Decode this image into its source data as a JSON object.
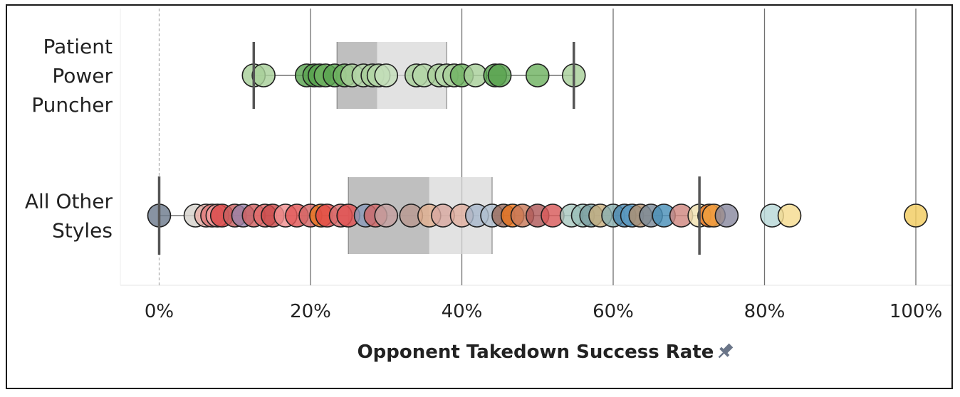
{
  "chart_data": {
    "type": "scatter",
    "subtype": "box-and-whisker strip plot",
    "xlabel": "Opponent Takedown Success Rate",
    "xlabel_icon": "pin-icon",
    "xlim": [
      -0.05,
      1.05
    ],
    "xticks": [
      0,
      0.2,
      0.4,
      0.6,
      0.8,
      1.0
    ],
    "xtick_labels": [
      "0%",
      "20%",
      "40%",
      "60%",
      "80%",
      "100%"
    ],
    "grid": "vertical",
    "zero_line": "dashed",
    "rows": [
      {
        "label_lines": [
          "Patient",
          "Power",
          "Puncher"
        ],
        "box": {
          "whisker_low": 0.125,
          "q1": 0.235,
          "median": 0.288,
          "q3": 0.38,
          "whisker_high": 0.548
        },
        "points": [
          {
            "x": 0.125,
            "color": "#a8cf9a"
          },
          {
            "x": 0.138,
            "color": "#a8cf9a"
          },
          {
            "x": 0.195,
            "color": "#5aa350"
          },
          {
            "x": 0.205,
            "color": "#5aa350"
          },
          {
            "x": 0.212,
            "color": "#5aa350"
          },
          {
            "x": 0.22,
            "color": "#6fb262"
          },
          {
            "x": 0.232,
            "color": "#5aa350"
          },
          {
            "x": 0.245,
            "color": "#6fb262"
          },
          {
            "x": 0.255,
            "color": "#a8cf9a"
          },
          {
            "x": 0.27,
            "color": "#b5d7a8"
          },
          {
            "x": 0.282,
            "color": "#a8cf9a"
          },
          {
            "x": 0.29,
            "color": "#b5d7a8"
          },
          {
            "x": 0.3,
            "color": "#c5dfbb"
          },
          {
            "x": 0.34,
            "color": "#a8cf9a"
          },
          {
            "x": 0.35,
            "color": "#b5d7a8"
          },
          {
            "x": 0.37,
            "color": "#a8cf9a"
          },
          {
            "x": 0.38,
            "color": "#b5d7a8"
          },
          {
            "x": 0.39,
            "color": "#a8cf9a"
          },
          {
            "x": 0.4,
            "color": "#6fb262"
          },
          {
            "x": 0.418,
            "color": "#a8cf9a"
          },
          {
            "x": 0.444,
            "color": "#5aa350"
          },
          {
            "x": 0.45,
            "color": "#5aa350"
          },
          {
            "x": 0.5,
            "color": "#6fb262"
          },
          {
            "x": 0.548,
            "color": "#a8cf9a"
          }
        ]
      },
      {
        "label_lines": [
          "All Other",
          "Styles"
        ],
        "box": {
          "whisker_low": 0.0,
          "q1": 0.25,
          "median": 0.357,
          "q3": 0.44,
          "whisker_high": 0.714
        },
        "points": [
          {
            "x": 0.0,
            "color": "#6e7b8e"
          },
          {
            "x": 0.048,
            "color": "#d6d2cc"
          },
          {
            "x": 0.062,
            "color": "#e8b0a8"
          },
          {
            "x": 0.07,
            "color": "#e07a7a"
          },
          {
            "x": 0.077,
            "color": "#f0a0a0"
          },
          {
            "x": 0.083,
            "color": "#d94848"
          },
          {
            "x": 0.1,
            "color": "#c86060"
          },
          {
            "x": 0.111,
            "color": "#9a82a8"
          },
          {
            "x": 0.125,
            "color": "#d06262"
          },
          {
            "x": 0.14,
            "color": "#e06a6a"
          },
          {
            "x": 0.15,
            "color": "#c84a4a"
          },
          {
            "x": 0.167,
            "color": "#f09090"
          },
          {
            "x": 0.182,
            "color": "#e05858"
          },
          {
            "x": 0.2,
            "color": "#d46868"
          },
          {
            "x": 0.214,
            "color": "#e8741e"
          },
          {
            "x": 0.222,
            "color": "#e04a4a"
          },
          {
            "x": 0.24,
            "color": "#d87070"
          },
          {
            "x": 0.25,
            "color": "#e05050"
          },
          {
            "x": 0.273,
            "color": "#8a9ab8"
          },
          {
            "x": 0.286,
            "color": "#d06868"
          },
          {
            "x": 0.3,
            "color": "#c4a0a0"
          },
          {
            "x": 0.333,
            "color": "#b89890"
          },
          {
            "x": 0.357,
            "color": "#e0b090"
          },
          {
            "x": 0.375,
            "color": "#d8a8a0"
          },
          {
            "x": 0.4,
            "color": "#e0b0a0"
          },
          {
            "x": 0.42,
            "color": "#a8b8cc"
          },
          {
            "x": 0.44,
            "color": "#b0c0d0"
          },
          {
            "x": 0.455,
            "color": "#9a6a5a"
          },
          {
            "x": 0.467,
            "color": "#e8741e"
          },
          {
            "x": 0.48,
            "color": "#c87a5a"
          },
          {
            "x": 0.5,
            "color": "#b05a5a"
          },
          {
            "x": 0.52,
            "color": "#d85a5a"
          },
          {
            "x": 0.545,
            "color": "#a8c8c0"
          },
          {
            "x": 0.56,
            "color": "#9ac0b8"
          },
          {
            "x": 0.571,
            "color": "#7a9ea0"
          },
          {
            "x": 0.583,
            "color": "#c8b080"
          },
          {
            "x": 0.6,
            "color": "#8ab0b0"
          },
          {
            "x": 0.615,
            "color": "#4a88b0"
          },
          {
            "x": 0.625,
            "color": "#5a98c0"
          },
          {
            "x": 0.636,
            "color": "#b09070"
          },
          {
            "x": 0.65,
            "color": "#7a8a98"
          },
          {
            "x": 0.667,
            "color": "#4a90b8"
          },
          {
            "x": 0.69,
            "color": "#d08880"
          },
          {
            "x": 0.714,
            "color": "#f0e0b0"
          },
          {
            "x": 0.727,
            "color": "#e8741e"
          },
          {
            "x": 0.733,
            "color": "#f0a040"
          },
          {
            "x": 0.75,
            "color": "#8a8aa0"
          },
          {
            "x": 0.81,
            "color": "#b8d8d8"
          },
          {
            "x": 0.833,
            "color": "#f5dc90"
          },
          {
            "x": 1.0,
            "color": "#f2cc60"
          }
        ]
      }
    ]
  }
}
